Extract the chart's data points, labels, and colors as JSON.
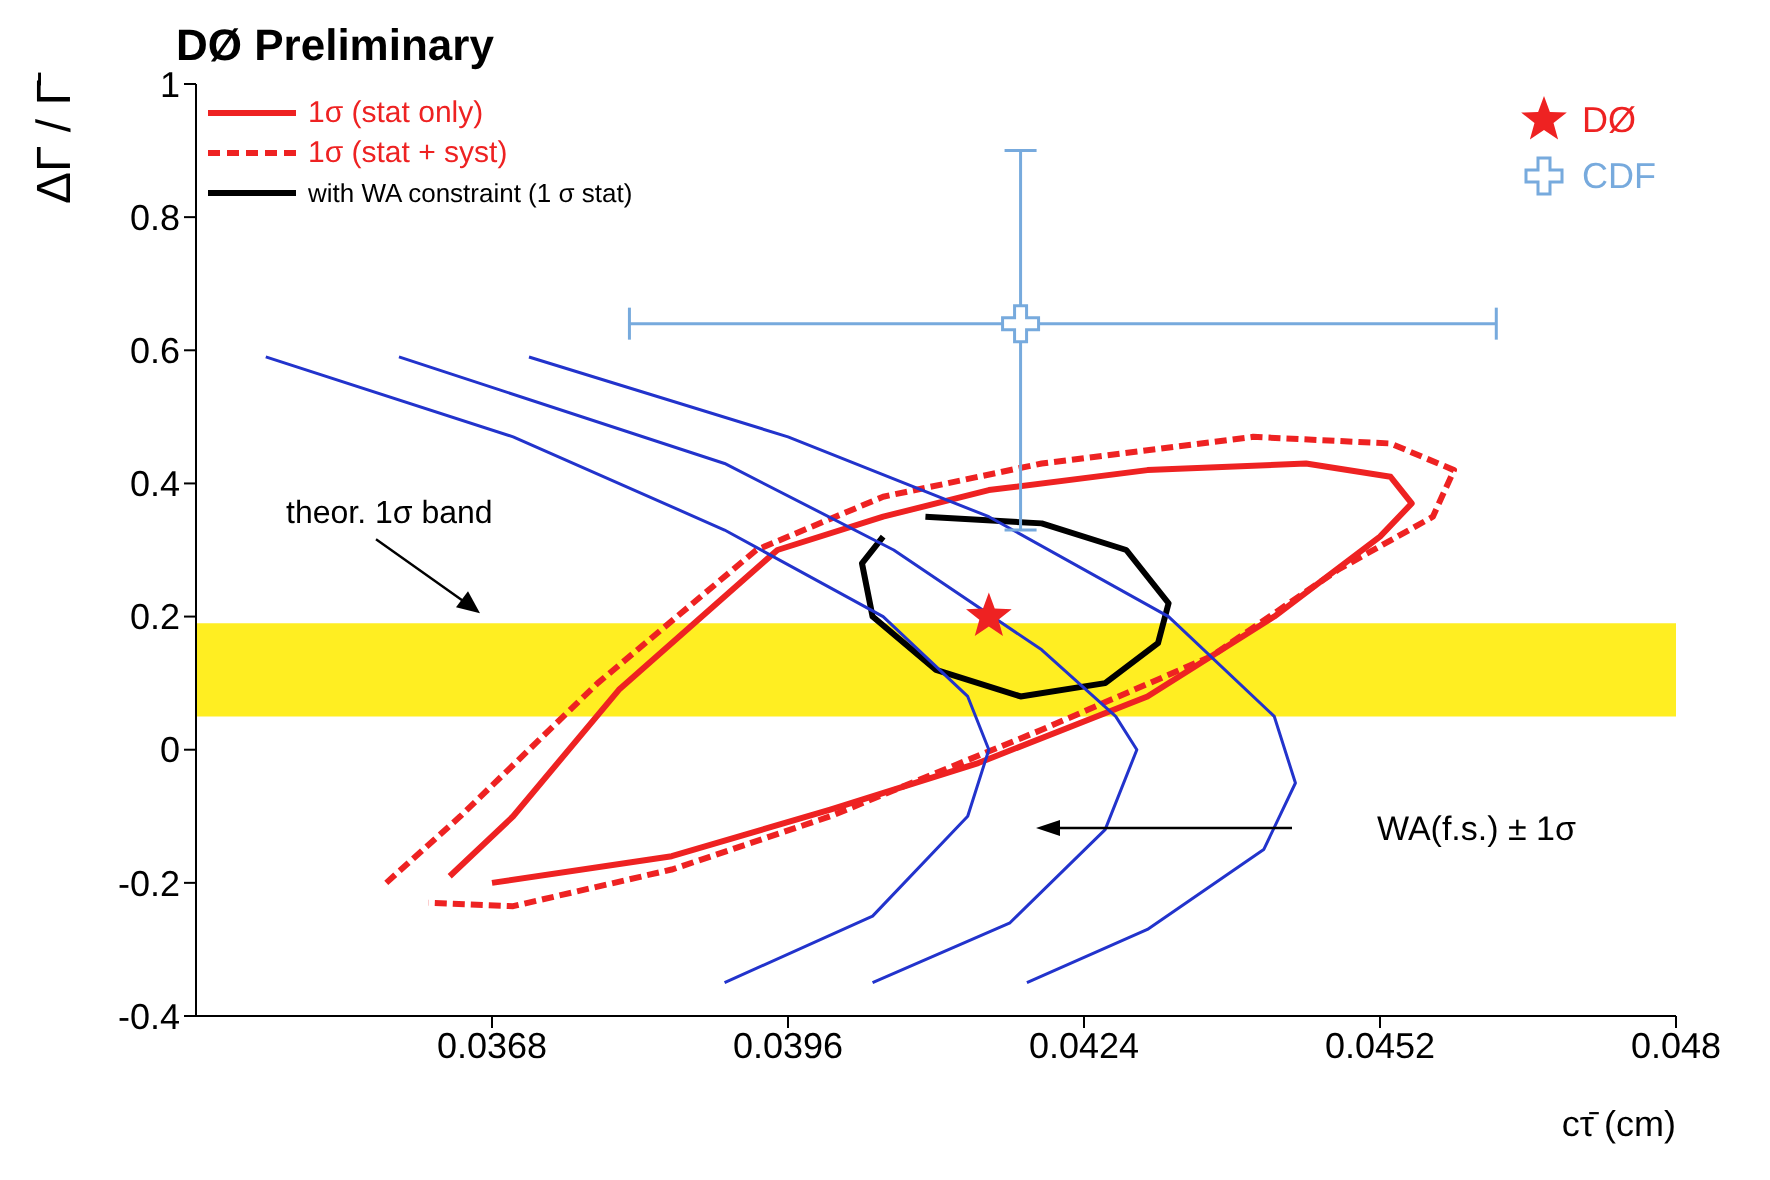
{
  "chart_data": {
    "type": "line",
    "title": "DØ Preliminary",
    "xlabel": "cτ̄ (cm)",
    "ylabel": "ΔΓ / Γ̄",
    "xlim": [
      0.034,
      0.048
    ],
    "xticks": [
      0.0368,
      0.0396,
      0.0424,
      0.0452,
      0.048
    ],
    "ylim": [
      -0.4,
      1
    ],
    "yticks": [
      -0.4,
      -0.2,
      0,
      0.2,
      0.4,
      0.6,
      0.8,
      1
    ],
    "grid": false,
    "legend": "top left",
    "marker": "none",
    "bands": [
      {
        "axis": "y",
        "from": 0.05,
        "to": 0.19,
        "label": "theor. 1σ band",
        "color": "#ffee22"
      }
    ],
    "annotations": [
      "WA(f.s.) ± 1σ"
    ],
    "series": [
      {
        "name": "1σ (stat only)",
        "color": "#ee2222",
        "line_style": "solid",
        "x": [
          0.0364,
          0.037,
          0.038,
          0.0395,
          0.0405,
          0.0415,
          0.043,
          0.0445,
          0.0453,
          0.0455,
          0.0452,
          0.0442,
          0.043,
          0.0414,
          0.04,
          0.0385,
          0.0368
        ],
        "values": [
          -0.19,
          -0.1,
          0.09,
          0.3,
          0.35,
          0.39,
          0.42,
          0.43,
          0.41,
          0.37,
          0.32,
          0.2,
          0.08,
          -0.02,
          -0.09,
          -0.16,
          -0.2
        ]
      },
      {
        "name": "1σ (stat + syst)",
        "color": "#ee2222",
        "line_style": "dashed",
        "x": [
          0.0358,
          0.0365,
          0.0378,
          0.0393,
          0.0405,
          0.042,
          0.044,
          0.0453,
          0.0459,
          0.0457,
          0.0448,
          0.0436,
          0.042,
          0.04,
          0.0385,
          0.037,
          0.0362
        ],
        "values": [
          -0.2,
          -0.1,
          0.1,
          0.3,
          0.38,
          0.43,
          0.47,
          0.46,
          0.42,
          0.35,
          0.27,
          0.14,
          0.03,
          -0.1,
          -0.18,
          -0.235,
          -0.23
        ]
      },
      {
        "name": "with WA constraint (1 σ stat)",
        "color": "#000000",
        "line_style": "solid",
        "x": [
          0.0409,
          0.042,
          0.0428,
          0.0432,
          0.0431,
          0.0426,
          0.0418,
          0.041,
          0.0404,
          0.0403,
          0.0405
        ],
        "values": [
          0.35,
          0.34,
          0.3,
          0.22,
          0.16,
          0.1,
          0.08,
          0.12,
          0.2,
          0.28,
          0.32
        ]
      },
      {
        "color": "#2233cc",
        "line_style": "solid",
        "x": [
          0.03466,
          0.037,
          0.039,
          0.0405,
          0.0413,
          0.0415,
          0.0413,
          0.0404,
          0.039
        ],
        "values": [
          0.59,
          0.47,
          0.33,
          0.2,
          0.08,
          0,
          -0.1,
          -0.25,
          -0.35
        ]
      },
      {
        "color": "#2233cc",
        "line_style": "solid",
        "x": [
          0.03592,
          0.039,
          0.0406,
          0.042,
          0.0427,
          0.0429,
          0.0426,
          0.0417,
          0.0404
        ],
        "values": [
          0.59,
          0.43,
          0.3,
          0.15,
          0.05,
          0,
          -0.12,
          -0.26,
          -0.35
        ]
      },
      {
        "color": "#2233cc",
        "line_style": "solid",
        "x": [
          0.03715,
          0.0396,
          0.0415,
          0.0432,
          0.0442,
          0.0444,
          0.0441,
          0.043,
          0.04186
        ],
        "values": [
          0.59,
          0.47,
          0.35,
          0.2,
          0.05,
          -0.05,
          -0.15,
          -0.27,
          -0.35
        ]
      },
      {
        "name": "DØ",
        "type": "scatter",
        "marker": "star",
        "color": "#ee2222",
        "x": [
          0.0415
        ],
        "values": [
          0.2
        ]
      },
      {
        "name": "CDF",
        "type": "scatter",
        "marker": "cross",
        "color": "#77aadd",
        "x": [
          0.0418
        ],
        "values": [
          0.64
        ],
        "errors": [
          [
            0.33,
            0.9
          ]
        ],
        "xerrors": [
          [
            0.0381,
            0.0463
          ]
        ]
      }
    ]
  }
}
